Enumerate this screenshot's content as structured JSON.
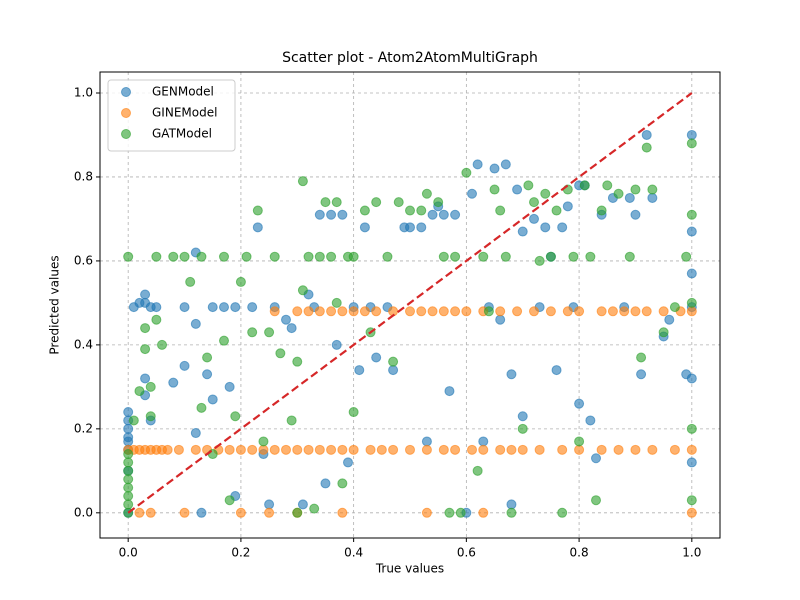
{
  "chart_data": {
    "type": "scatter",
    "title": "Scatter plot - Atom2AtomMultiGraph",
    "x_label": "True values",
    "y_label": "Predicted values",
    "xlim": [
      -0.05,
      1.05
    ],
    "ylim": [
      -0.06,
      1.05
    ],
    "xticks": [
      {
        "value": 0,
        "label": "0.0"
      },
      0.2,
      0.4,
      0.6,
      0.8,
      {
        "value": 1,
        "label": "1.0"
      }
    ],
    "yticks": [
      {
        "value": 0,
        "label": "0.0"
      },
      0.2,
      0.4,
      0.6,
      0.8,
      {
        "value": 1,
        "label": "1.0"
      }
    ],
    "grid": true,
    "legend": "upper left",
    "reference_line": {
      "x": [
        0,
        1
      ],
      "y": [
        0,
        1
      ],
      "color": "#d62728"
    },
    "series": [
      {
        "name": "GENModel",
        "color": "#1f77b4",
        "x": [
          0,
          0,
          0,
          0,
          0,
          0,
          0,
          0,
          0.03,
          0.03,
          0.04,
          0.02,
          0.01,
          0.03,
          0.03,
          0.04,
          0.05,
          0.08,
          0.1,
          0.1,
          0.12,
          0.12,
          0.12,
          0.13,
          0.14,
          0.15,
          0.15,
          0.17,
          0.18,
          0.19,
          0.19,
          0.22,
          0.23,
          0.24,
          0.25,
          0.26,
          0.28,
          0.29,
          0.31,
          0.32,
          0.33,
          0.34,
          0.35,
          0.36,
          0.37,
          0.38,
          0.39,
          0.4,
          0.41,
          0.42,
          0.43,
          0.44,
          0.46,
          0.47,
          0.49,
          0.5,
          0.52,
          0.53,
          0.54,
          0.55,
          0.56,
          0.57,
          0.58,
          0.6,
          0.61,
          0.62,
          0.63,
          0.64,
          0.65,
          0.66,
          0.67,
          0.68,
          0.68,
          0.69,
          0.7,
          0.7,
          0.72,
          0.73,
          0.74,
          0.75,
          0.76,
          0.77,
          0.78,
          0.79,
          0.8,
          0.8,
          0.81,
          0.82,
          0.83,
          0.84,
          0.86,
          0.88,
          0.89,
          0.9,
          0.91,
          0.92,
          0.93,
          0.95,
          0.96,
          0.99,
          1,
          1,
          1,
          1,
          1,
          1
        ],
        "y": [
          0,
          0.1,
          0.15,
          0.17,
          0.18,
          0.2,
          0.22,
          0.24,
          0.52,
          0.5,
          0.49,
          0.5,
          0.49,
          0.32,
          0.28,
          0.22,
          0.49,
          0.31,
          0.35,
          0.49,
          0.62,
          0.45,
          0.19,
          0,
          0.33,
          0.49,
          0.27,
          0.49,
          0.3,
          0.49,
          0.04,
          0.49,
          0.68,
          0.14,
          0.02,
          0.49,
          0.46,
          0.44,
          0.02,
          0.52,
          0.49,
          0.71,
          0.07,
          0.71,
          0.4,
          0.71,
          0.12,
          0.49,
          0.34,
          0.68,
          0.49,
          0.37,
          0.49,
          0.34,
          0.68,
          0.68,
          0.68,
          0.17,
          0.71,
          0.73,
          0.71,
          0.29,
          0.71,
          0,
          0.76,
          0.83,
          0.17,
          0.49,
          0.82,
          0.46,
          0.83,
          0.33,
          0.02,
          0.77,
          0.23,
          0.67,
          0.7,
          0.49,
          0.68,
          0.61,
          0.34,
          0.68,
          0.73,
          0.49,
          0.26,
          0.78,
          0.78,
          0.22,
          0.13,
          0.71,
          0.75,
          0.49,
          0.75,
          0.71,
          0.33,
          0.9,
          0.75,
          0.42,
          0.46,
          0.33,
          0.9,
          0.67,
          0.57,
          0.32,
          0.12,
          0.49
        ]
      },
      {
        "name": "GINEModel",
        "color": "#ff7f0e",
        "x": [
          0,
          0.01,
          0.02,
          0.03,
          0.04,
          0.05,
          0.06,
          0.07,
          0.09,
          0.12,
          0.14,
          0.16,
          0.18,
          0.2,
          0.22,
          0.24,
          0.26,
          0.28,
          0.3,
          0.32,
          0.34,
          0.36,
          0.38,
          0.4,
          0.43,
          0.45,
          0.47,
          0.5,
          0.53,
          0.56,
          0.58,
          0.61,
          0.63,
          0.66,
          0.68,
          0.7,
          0.73,
          0.77,
          0.8,
          0.84,
          0.87,
          0.9,
          0.93,
          0.97,
          1,
          0.26,
          0.3,
          0.32,
          0.34,
          0.36,
          0.38,
          0.4,
          0.42,
          0.44,
          0.47,
          0.5,
          0.52,
          0.54,
          0.56,
          0.58,
          0.6,
          0.63,
          0.66,
          0.69,
          0.72,
          0.75,
          0.78,
          0.8,
          0.84,
          0.86,
          0.88,
          0.9,
          0.92,
          0.95,
          0.98,
          1,
          0.02,
          0.04,
          0.1,
          0.2,
          0.25,
          0.3,
          0.38,
          0.53,
          0.63,
          1
        ],
        "y": [
          0.15,
          0.15,
          0.15,
          0.15,
          0.15,
          0.15,
          0.15,
          0.15,
          0.15,
          0.15,
          0.15,
          0.15,
          0.15,
          0.15,
          0.15,
          0.15,
          0.15,
          0.15,
          0.15,
          0.15,
          0.15,
          0.15,
          0.15,
          0.15,
          0.15,
          0.15,
          0.15,
          0.15,
          0.15,
          0.15,
          0.15,
          0.15,
          0.15,
          0.15,
          0.15,
          0.15,
          0.15,
          0.15,
          0.15,
          0.15,
          0.15,
          0.15,
          0.15,
          0.15,
          0.15,
          0.48,
          0.48,
          0.48,
          0.48,
          0.48,
          0.48,
          0.48,
          0.48,
          0.48,
          0.48,
          0.48,
          0.48,
          0.48,
          0.48,
          0.48,
          0.48,
          0.48,
          0.48,
          0.48,
          0.48,
          0.48,
          0.48,
          0.48,
          0.48,
          0.48,
          0.48,
          0.48,
          0.48,
          0.48,
          0.48,
          0.48,
          0,
          0,
          0,
          0,
          0,
          0,
          0,
          0,
          0,
          0
        ]
      },
      {
        "name": "GATModel",
        "color": "#2ca02c",
        "x": [
          0,
          0,
          0,
          0,
          0,
          0,
          0,
          0,
          0,
          0.01,
          0.02,
          0.03,
          0.03,
          0.04,
          0.04,
          0.05,
          0.06,
          0.05,
          0.08,
          0.1,
          0.11,
          0.13,
          0.13,
          0.14,
          0.15,
          0.17,
          0.17,
          0.18,
          0.19,
          0.2,
          0.21,
          0.22,
          0.23,
          0.24,
          0.25,
          0.26,
          0.27,
          0.29,
          0.3,
          0.3,
          0.31,
          0.31,
          0.32,
          0.33,
          0.34,
          0.35,
          0.36,
          0.37,
          0.37,
          0.38,
          0.39,
          0.4,
          0.4,
          0.42,
          0.43,
          0.44,
          0.46,
          0.47,
          0.48,
          0.5,
          0.52,
          0.53,
          0.55,
          0.56,
          0.57,
          0.58,
          0.59,
          0.6,
          0.62,
          0.63,
          0.64,
          0.65,
          0.66,
          0.67,
          0.68,
          0.7,
          0.71,
          0.72,
          0.73,
          0.74,
          0.75,
          0.76,
          0.77,
          0.78,
          0.79,
          0.8,
          0.81,
          0.82,
          0.83,
          0.84,
          0.85,
          0.87,
          0.89,
          0.9,
          0.91,
          0.92,
          0.93,
          0.95,
          0.97,
          0.99,
          1,
          1,
          1,
          1,
          1
        ],
        "y": [
          0,
          0.02,
          0.04,
          0.06,
          0.08,
          0.1,
          0.12,
          0.14,
          0.61,
          0.22,
          0.29,
          0.39,
          0.44,
          0.3,
          0.23,
          0.61,
          0.4,
          0.46,
          0.61,
          0.61,
          0.55,
          0.61,
          0.25,
          0.37,
          0.14,
          0.61,
          0.41,
          0.03,
          0.23,
          0.55,
          0.61,
          0.43,
          0.72,
          0.17,
          0.43,
          0.61,
          0.38,
          0.22,
          0,
          0.36,
          0.79,
          0.53,
          0.61,
          0.01,
          0.61,
          0.74,
          0.61,
          0.74,
          0.5,
          0.07,
          0.61,
          0.61,
          0.24,
          0.72,
          0.43,
          0.74,
          0.61,
          0.36,
          0.74,
          0.72,
          0.72,
          0.76,
          0.74,
          0.61,
          0,
          0.61,
          0,
          0.81,
          0.1,
          0.61,
          0.48,
          0.77,
          0.72,
          0.61,
          0,
          0.2,
          0.78,
          0.74,
          0.6,
          0.76,
          0.61,
          0.72,
          0,
          0.77,
          0.61,
          0.17,
          0.78,
          0.61,
          0.03,
          0.72,
          0.78,
          0.76,
          0.61,
          0.77,
          0.37,
          0.87,
          0.77,
          0.43,
          0.49,
          0.61,
          0.88,
          0.71,
          0.5,
          0.2,
          0.03
        ]
      }
    ]
  }
}
